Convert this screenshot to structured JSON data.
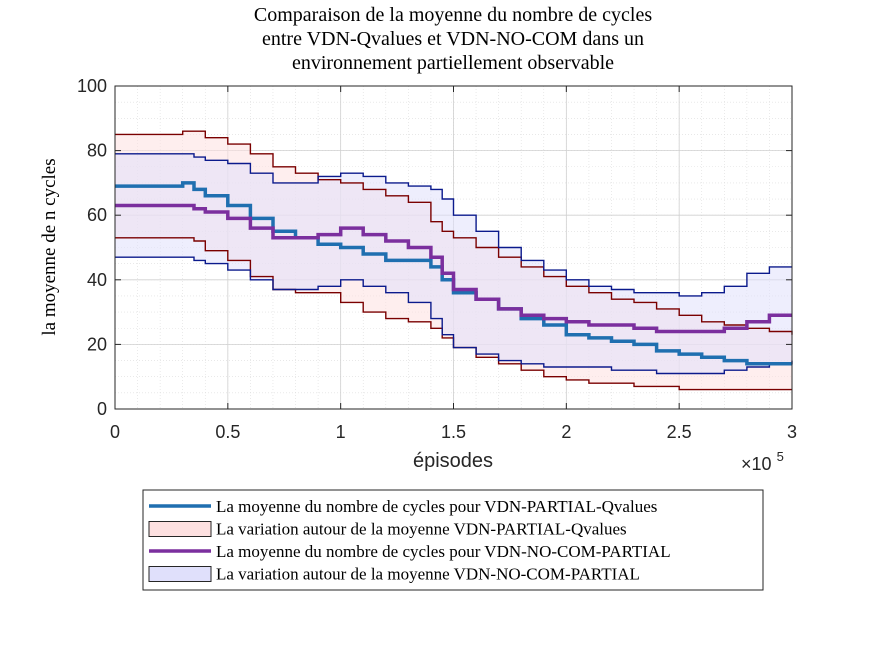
{
  "chart_data": {
    "type": "area",
    "title_lines": [
      "Comparaison de la moyenne du nombre de cycles",
      "entre VDN-Qvalues et VDN-NO-COM dans un",
      "environnement partiellement observable"
    ],
    "xlabel": "épisodes",
    "ylabel": "la moyenne de n cycles",
    "x_multiplier": "×10",
    "x_multiplier_exp": "5",
    "xlim": [
      0,
      3
    ],
    "ylim": [
      0,
      100
    ],
    "x_ticks": [
      0,
      0.5,
      1,
      1.5,
      2,
      2.5,
      3
    ],
    "x_tick_labels": [
      "0",
      "0.5",
      "1",
      "1.5",
      "2",
      "2.5",
      "3"
    ],
    "y_ticks": [
      0,
      20,
      40,
      60,
      80,
      100
    ],
    "y_tick_labels": [
      "0",
      "20",
      "40",
      "60",
      "80",
      "100"
    ],
    "grid": true,
    "legend_position": "bottom",
    "x": [
      0,
      0.1,
      0.2,
      0.3,
      0.35,
      0.4,
      0.5,
      0.6,
      0.7,
      0.8,
      0.9,
      1.0,
      1.1,
      1.2,
      1.3,
      1.4,
      1.45,
      1.5,
      1.6,
      1.7,
      1.8,
      1.9,
      2.0,
      2.1,
      2.2,
      2.3,
      2.4,
      2.5,
      2.6,
      2.7,
      2.8,
      2.9,
      3.0
    ],
    "series": [
      {
        "name": "La moyenne du nombre de cycles pour VDN-PARTIAL-Qvalues",
        "color": "#1f6fb0",
        "mean": [
          69,
          69,
          69,
          70,
          68,
          66,
          63,
          59,
          55,
          53,
          51,
          50,
          48,
          46,
          46,
          44,
          40,
          36,
          34,
          31,
          28,
          26,
          23,
          22,
          21,
          20,
          18,
          17,
          16,
          15,
          14,
          14,
          14
        ],
        "upper": [
          85,
          85,
          85,
          86,
          86,
          84,
          82,
          79,
          75,
          73,
          71,
          70,
          68,
          66,
          64,
          58,
          55,
          53,
          50,
          47,
          44,
          41,
          38,
          36,
          34,
          33,
          31,
          29,
          27,
          26,
          25,
          24,
          23
        ],
        "lower": [
          53,
          53,
          53,
          53,
          52,
          49,
          46,
          41,
          37,
          36,
          36,
          33,
          30,
          28,
          27,
          25,
          22,
          19,
          16,
          14,
          12,
          10,
          9,
          8,
          8,
          7,
          7,
          6,
          6,
          6,
          6,
          6,
          6
        ],
        "band_name": "La variation autour de la moyenne VDN-PARTIAL-Qvalues",
        "band_fill": "#fde0e0",
        "band_edge": "#7a0000"
      },
      {
        "name": "La moyenne du nombre de cycles pour VDN-NO-COM-PARTIAL",
        "color": "#7b2f9e",
        "mean": [
          63,
          63,
          63,
          63,
          62,
          61,
          59,
          56,
          53,
          53,
          54,
          56,
          54,
          52,
          50,
          47,
          42,
          37,
          34,
          31,
          29,
          28,
          27,
          26,
          26,
          25,
          24,
          24,
          24,
          25,
          27,
          29,
          29
        ],
        "upper": [
          79,
          79,
          79,
          79,
          78,
          77,
          76,
          73,
          70,
          70,
          72,
          73,
          72,
          70,
          69,
          68,
          65,
          60,
          55,
          50,
          46,
          43,
          40,
          38,
          37,
          36,
          36,
          35,
          36,
          38,
          42,
          44,
          44
        ],
        "lower": [
          47,
          47,
          47,
          47,
          46,
          45,
          43,
          40,
          37,
          37,
          38,
          40,
          38,
          36,
          33,
          28,
          23,
          19,
          17,
          15,
          14,
          13,
          13,
          13,
          12,
          12,
          11,
          11,
          11,
          12,
          13,
          14,
          15
        ],
        "band_name": "La variation autour de la moyenne VDN-NO-COM-PARTIAL",
        "band_fill": "#e0e0fb",
        "band_edge": "#0b1a8c"
      }
    ]
  }
}
